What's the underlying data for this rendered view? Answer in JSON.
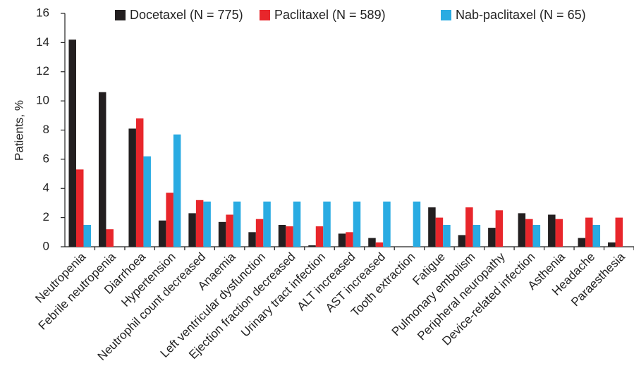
{
  "chart_data": {
    "type": "bar",
    "y_label": "Patients, %",
    "categories": [
      "Neutropenia",
      "Febrile neutropenia",
      "Diarrhoea",
      "Hypertension",
      "Neutrophil count decreased",
      "Anaemia",
      "Left ventricular dysfunction",
      "Ejection fraction decreased",
      "Urinary tract infection",
      "ALT increased",
      "AST increased",
      "Tooth extraction",
      "Fatigue",
      "Pulmonary embolism",
      "Peripheral neuropathy",
      "Device-related infection",
      "Asthenia",
      "Headache",
      "Paraesthesia"
    ],
    "series": [
      {
        "name": "Docetaxel (N = 775)",
        "color": "#231f20",
        "values": [
          14.2,
          10.6,
          8.1,
          1.8,
          2.3,
          1.7,
          1.0,
          1.5,
          0.1,
          0.9,
          0.6,
          0,
          2.7,
          0.8,
          1.3,
          2.3,
          2.2,
          0.6,
          0.3
        ]
      },
      {
        "name": "Paclitaxel (N = 589)",
        "color": "#e8262b",
        "values": [
          5.3,
          1.2,
          8.8,
          3.7,
          3.2,
          2.2,
          1.9,
          1.4,
          1.4,
          1.0,
          0.3,
          0,
          2.0,
          2.7,
          2.5,
          1.9,
          1.9,
          2.0,
          2.0
        ]
      },
      {
        "name": "Nab-paclitaxel (N = 65)",
        "color": "#29abe2",
        "values": [
          1.5,
          0,
          6.2,
          7.7,
          3.1,
          3.1,
          3.1,
          3.1,
          3.1,
          3.1,
          3.1,
          3.1,
          1.5,
          1.5,
          0,
          1.5,
          0,
          1.5,
          0
        ]
      }
    ],
    "ylim": [
      0,
      16
    ],
    "yticks": [
      0,
      2,
      4,
      6,
      8,
      10,
      12,
      14,
      16
    ],
    "grid": false,
    "legend": "top"
  }
}
